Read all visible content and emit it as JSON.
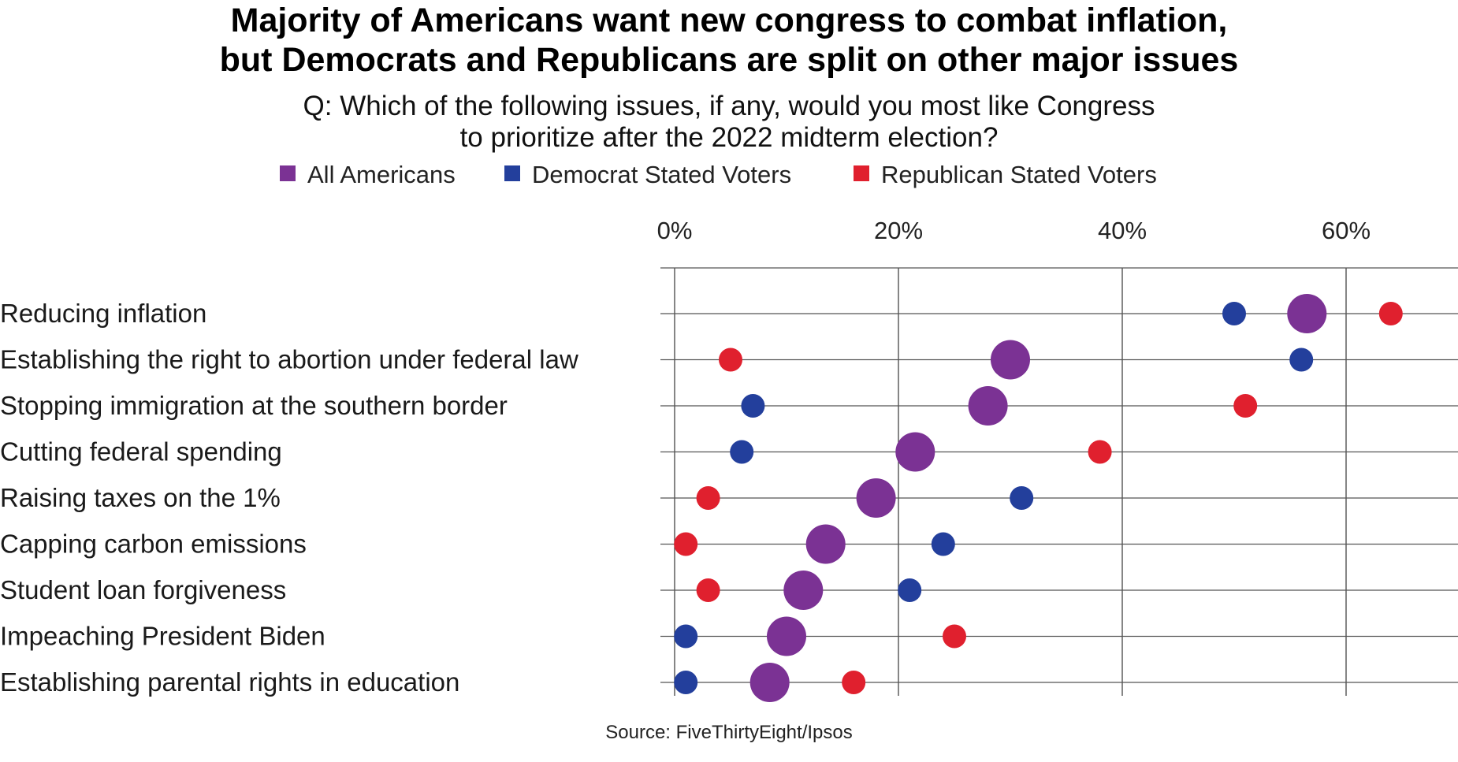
{
  "chart_data": {
    "type": "scatter",
    "title_line1": "Majority of Americans want new congress to combat inflation,",
    "title_line2": "but Democrats and Republicans are split on other major issues",
    "subtitle_line1": "Q: Which of the following issues, if any, would you most like Congress",
    "subtitle_line2": "to prioritize after the 2022 midterm election?",
    "source": "Source: FiveThirtyEight/Ipsos",
    "xlim": [
      0,
      70
    ],
    "x_ticks": [
      0,
      20,
      40,
      60
    ],
    "x_tick_labels": [
      "0%",
      "20%",
      "40%",
      "60%"
    ],
    "legend_position": "top-center",
    "categories": [
      "Reducing inflation",
      "Establishing the right to abortion under federal law",
      "Stopping immigration at the southern border",
      "Cutting federal spending",
      "Raising taxes on the 1%",
      "Capping carbon emissions",
      "Student loan forgiveness",
      "Impeaching President Biden",
      "Establishing parental rights in education"
    ],
    "series": [
      {
        "name": "All Americans",
        "color": "#7b3294",
        "marker": "large-circle",
        "values": [
          56.5,
          30,
          28,
          21.5,
          18,
          13.5,
          11.5,
          10,
          8.5
        ]
      },
      {
        "name": "Democrat Stated Voters",
        "color": "#233f9c",
        "marker": "small-circle",
        "values": [
          50,
          56,
          7,
          6,
          31,
          24,
          21,
          1,
          1
        ]
      },
      {
        "name": "Republican Stated Voters",
        "color": "#e0202e",
        "marker": "small-circle",
        "values": [
          64,
          5,
          51,
          38,
          3,
          1,
          3,
          25,
          16
        ]
      }
    ]
  }
}
